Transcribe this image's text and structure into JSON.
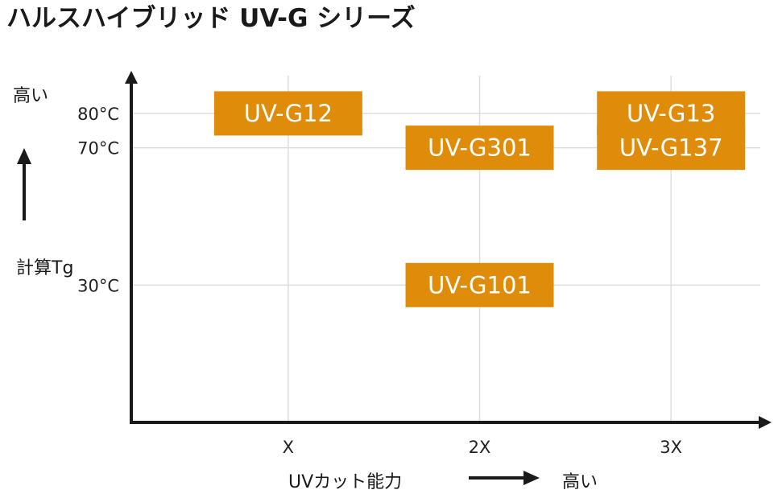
{
  "chart_data": {
    "type": "scatter",
    "title": "ハルスハイブリッド UV-G シリーズ",
    "x_axis": {
      "label": "UVカット能力",
      "high_label": "高い",
      "ticks": [
        "X",
        "2X",
        "3X"
      ],
      "tick_values": [
        1,
        2,
        3
      ],
      "range": [
        0.18,
        3.5
      ]
    },
    "y_axis": {
      "label": "計算Tg",
      "high_label": "高い",
      "ticks": [
        "80°C",
        "70°C",
        "30°C"
      ],
      "tick_values": [
        80,
        70,
        30
      ],
      "range": [
        -10,
        91
      ]
    },
    "grid": true,
    "points": [
      {
        "label": "UV-G12",
        "x": 1,
        "y": 80
      },
      {
        "label": "UV-G301",
        "x": 2,
        "y": 70
      },
      {
        "label": "UV-G101",
        "x": 2,
        "y": 30
      },
      {
        "label": "UV-G13",
        "x": 3,
        "y": 80
      },
      {
        "label": "UV-G137",
        "x": 3,
        "y": 70
      }
    ],
    "box_color": "#e08c0b",
    "axis_color": "#1a1a1a",
    "grid_color": "#dddddd"
  }
}
